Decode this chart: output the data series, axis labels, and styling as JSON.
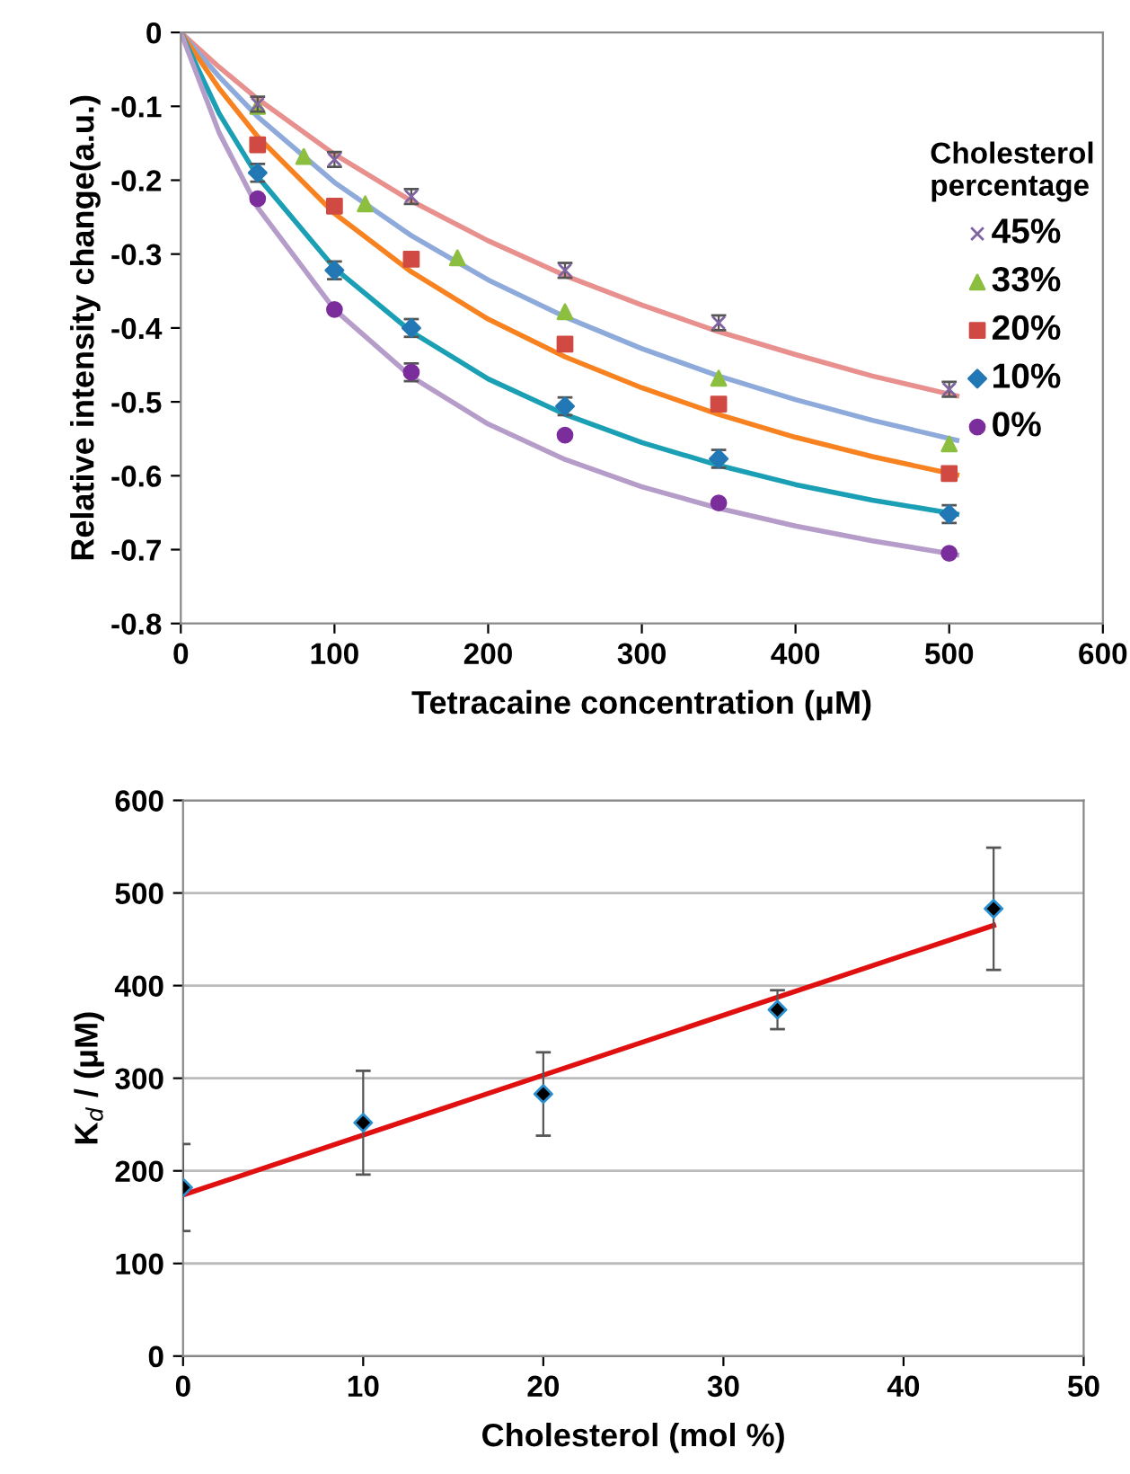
{
  "chart_data": [
    {
      "type": "scatter",
      "xlabel": "Tetracaine concentration (μM)",
      "ylabel": "Relative intensity change(a.u.)",
      "legend_title": "Cholesterol\npercentage",
      "legend": "right",
      "grid": false,
      "xlim": [
        0,
        600
      ],
      "xticks": [
        0,
        100,
        200,
        300,
        400,
        500,
        600
      ],
      "ylim": [
        -0.8,
        0
      ],
      "yticks": [
        -0.8,
        -0.7,
        -0.6,
        -0.5,
        -0.4,
        -0.3,
        -0.2,
        -0.1,
        0
      ],
      "series": [
        {
          "type": "line",
          "color": "#e8908e",
          "marker": "none",
          "x": [
            0,
            25,
            50,
            100,
            150,
            200,
            250,
            300,
            350,
            400,
            450,
            505
          ],
          "values": [
            0,
            -0.047,
            -0.09,
            -0.165,
            -0.228,
            -0.282,
            -0.329,
            -0.369,
            -0.405,
            -0.436,
            -0.465,
            -0.492
          ]
        },
        {
          "type": "line",
          "color": "#8eaadb",
          "marker": "none",
          "x": [
            0,
            25,
            50,
            100,
            150,
            200,
            250,
            300,
            350,
            400,
            450,
            505
          ],
          "values": [
            0,
            -0.06,
            -0.114,
            -0.203,
            -0.275,
            -0.335,
            -0.385,
            -0.428,
            -0.465,
            -0.497,
            -0.525,
            -0.552
          ]
        },
        {
          "type": "line",
          "color": "#f7821f",
          "marker": "none",
          "x": [
            0,
            25,
            50,
            100,
            150,
            200,
            250,
            300,
            350,
            400,
            450,
            505
          ],
          "values": [
            0,
            -0.076,
            -0.141,
            -0.245,
            -0.324,
            -0.388,
            -0.439,
            -0.481,
            -0.517,
            -0.548,
            -0.574,
            -0.599
          ]
        },
        {
          "type": "line",
          "color": "#1a9fb5",
          "marker": "none",
          "x": [
            0,
            25,
            50,
            100,
            150,
            200,
            250,
            300,
            350,
            400,
            450,
            505
          ],
          "values": [
            0,
            -0.11,
            -0.195,
            -0.319,
            -0.405,
            -0.469,
            -0.517,
            -0.555,
            -0.586,
            -0.612,
            -0.633,
            -0.652
          ]
        },
        {
          "type": "line",
          "color": "#b59cc9",
          "marker": "none",
          "x": [
            0,
            25,
            50,
            100,
            150,
            200,
            250,
            300,
            350,
            400,
            450,
            505
          ],
          "values": [
            0,
            -0.136,
            -0.237,
            -0.375,
            -0.466,
            -0.53,
            -0.578,
            -0.615,
            -0.644,
            -0.668,
            -0.688,
            -0.707
          ]
        },
        {
          "name": "45%",
          "color": "#8064a2",
          "marker": "cross",
          "x": [
            50,
            100,
            150,
            250,
            350,
            500
          ],
          "values": [
            -0.097,
            -0.172,
            -0.222,
            -0.322,
            -0.393,
            -0.483
          ],
          "errors": [
            0.01,
            0.01,
            0.01,
            0.01,
            0.01,
            0.01
          ]
        },
        {
          "name": "33%",
          "color": "#8cbe3f",
          "marker": "triangle",
          "x": [
            50,
            80,
            120,
            180,
            250,
            350,
            500
          ],
          "values": [
            -0.1,
            -0.168,
            -0.232,
            -0.305,
            -0.378,
            -0.468,
            -0.557
          ]
        },
        {
          "name": "20%",
          "color": "#d04a43",
          "marker": "square",
          "x": [
            50,
            100,
            150,
            250,
            350,
            500
          ],
          "values": [
            -0.152,
            -0.235,
            -0.307,
            -0.422,
            -0.503,
            -0.597
          ]
        },
        {
          "name": "10%",
          "color": "#2277b5",
          "marker": "diamond",
          "x": [
            50,
            100,
            150,
            250,
            350,
            500
          ],
          "values": [
            -0.19,
            -0.322,
            -0.4,
            -0.506,
            -0.577,
            -0.652
          ],
          "errors": [
            0.012,
            0.012,
            0.012,
            0.012,
            0.012,
            0.012
          ]
        },
        {
          "name": "0%",
          "color": "#7b2d9b",
          "marker": "circle",
          "x": [
            50,
            100,
            150,
            250,
            350,
            500
          ],
          "values": [
            -0.225,
            -0.375,
            -0.46,
            -0.545,
            -0.637,
            -0.705
          ],
          "errors": [
            null,
            null,
            0.012,
            null,
            null,
            null
          ]
        }
      ]
    },
    {
      "type": "scatter",
      "xlabel": "Cholesterol (mol %)",
      "ylabel": "K$_{d}$ / (μM)",
      "grid": "y",
      "xlim": [
        0,
        50
      ],
      "xticks": [
        0,
        10,
        20,
        30,
        40,
        50
      ],
      "ylim": [
        0,
        600
      ],
      "yticks": [
        0,
        100,
        200,
        300,
        400,
        500,
        600
      ],
      "series": [
        {
          "type": "line",
          "color": "#e01010",
          "marker": "none",
          "x": [
            0,
            45
          ],
          "values": [
            174,
            465
          ]
        },
        {
          "color": "#000000",
          "marker": "diamond",
          "x": [
            0,
            10,
            20,
            33,
            45
          ],
          "values": [
            182,
            252,
            283,
            374,
            483
          ],
          "errors": [
            47,
            56,
            45,
            21,
            66
          ]
        }
      ]
    }
  ]
}
